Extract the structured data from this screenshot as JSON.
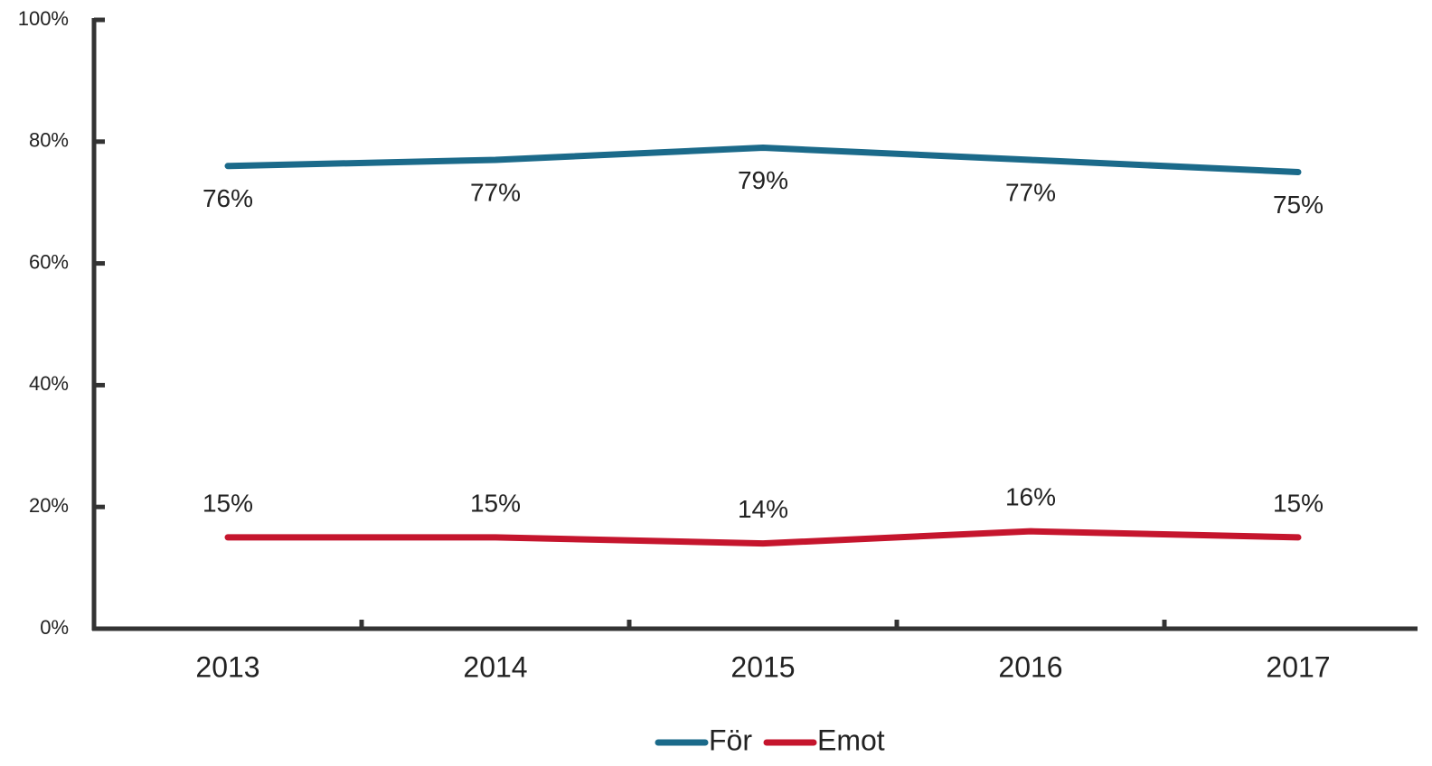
{
  "chart_data": {
    "type": "line",
    "categories": [
      "2013",
      "2014",
      "2015",
      "2016",
      "2017"
    ],
    "series": [
      {
        "name": "För",
        "color": "#1b6a8a",
        "values": [
          76,
          77,
          79,
          77,
          75
        ],
        "value_labels": [
          "76%",
          "77%",
          "79%",
          "77%",
          "75%"
        ]
      },
      {
        "name": "Emot",
        "color": "#c5152d",
        "values": [
          15,
          15,
          14,
          16,
          15
        ],
        "value_labels": [
          "15%",
          "15%",
          "14%",
          "16%",
          "15%"
        ]
      }
    ],
    "ylim": [
      0,
      100
    ],
    "yticks": [
      {
        "value": 0,
        "label": "0%"
      },
      {
        "value": 20,
        "label": "20%"
      },
      {
        "value": 40,
        "label": "40%"
      },
      {
        "value": 60,
        "label": "60%"
      },
      {
        "value": 80,
        "label": "80%"
      },
      {
        "value": 100,
        "label": "100%"
      }
    ],
    "legend": "bottom"
  }
}
